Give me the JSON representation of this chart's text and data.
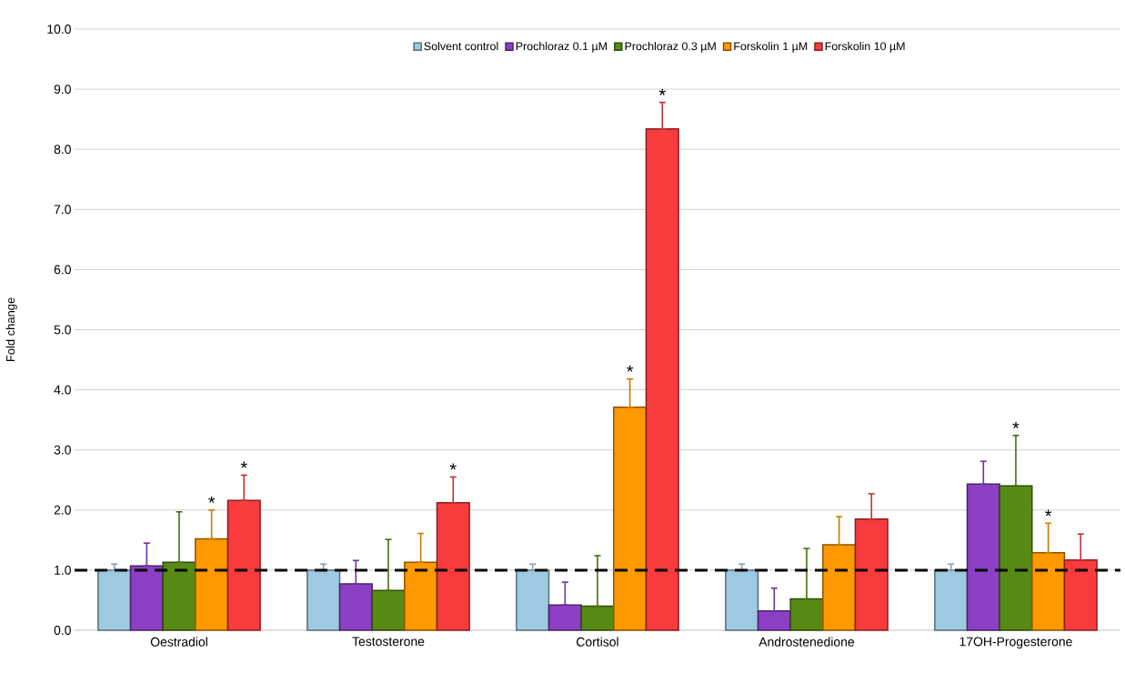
{
  "chart_data": {
    "type": "bar",
    "ylabel": "Fold change",
    "categories": [
      "Oestradiol",
      "Testosterone",
      "Cortisol",
      "Androstenedione",
      "17OH-Progesterone"
    ],
    "series": [
      {
        "name": "Solvent control",
        "color": "#9ecae1",
        "values": [
          1.0,
          1.0,
          1.0,
          1.0,
          1.0
        ],
        "errors": [
          [
            1.0,
            1.1
          ],
          [
            1.0,
            1.1
          ],
          [
            1.0,
            1.1
          ],
          [
            1.0,
            1.1
          ],
          [
            1.0,
            1.1
          ]
        ],
        "value_labels": [
          null,
          null,
          null,
          null,
          null
        ]
      },
      {
        "name": "Prochloraz 0.1 µM",
        "color": "#8b3fc4",
        "values": [
          1.07,
          0.77,
          0.42,
          0.32,
          2.43
        ],
        "errors": [
          [
            1.07,
            1.45
          ],
          [
            0.77,
            1.16
          ],
          [
            0.42,
            0.8
          ],
          [
            0.32,
            0.7
          ],
          [
            2.43,
            2.81
          ]
        ],
        "value_labels": [
          null,
          null,
          null,
          null,
          null
        ]
      },
      {
        "name": "Prochloraz 0.3 µM",
        "color": "#578a14",
        "values": [
          1.13,
          0.66,
          0.4,
          0.52,
          2.4
        ],
        "errors": [
          [
            1.13,
            1.97
          ],
          [
            0.66,
            1.51
          ],
          [
            0.4,
            1.24
          ],
          [
            0.52,
            1.36
          ],
          [
            2.4,
            3.24
          ]
        ],
        "value_labels": [
          null,
          null,
          null,
          null,
          "*"
        ]
      },
      {
        "name": "Forskolin 1 µM",
        "color": "#ff9900",
        "values": [
          1.52,
          1.13,
          3.71,
          1.42,
          1.29
        ],
        "errors": [
          [
            1.52,
            2.0
          ],
          [
            1.13,
            1.61
          ],
          [
            3.71,
            4.18
          ],
          [
            1.42,
            1.89
          ],
          [
            1.29,
            1.78
          ]
        ],
        "value_labels": [
          "*",
          null,
          "*",
          null,
          "*"
        ]
      },
      {
        "name": "Forskolin 10 µM",
        "color": "#f83b3d",
        "values": [
          2.16,
          2.12,
          8.34,
          1.85,
          1.17
        ],
        "errors": [
          [
            2.16,
            2.58
          ],
          [
            2.12,
            2.55
          ],
          [
            8.34,
            8.78
          ],
          [
            1.85,
            2.27
          ],
          [
            1.17,
            1.6
          ]
        ],
        "value_labels": [
          "*",
          "*",
          "*",
          null,
          null
        ]
      }
    ],
    "ylim": [
      0,
      10
    ],
    "yticks": [
      {
        "value": 0,
        "label": "0.0"
      },
      {
        "value": 1,
        "label": "1.0"
      },
      {
        "value": 2,
        "label": "2.0"
      },
      {
        "value": 3,
        "label": "3.0"
      },
      {
        "value": 4,
        "label": "4.0"
      },
      {
        "value": 5,
        "label": "5.0"
      },
      {
        "value": 6,
        "label": "6.0"
      },
      {
        "value": 7,
        "label": "7.0"
      },
      {
        "value": 8,
        "label": "8.0"
      },
      {
        "value": 9,
        "label": "9.0"
      },
      {
        "value": 10,
        "label": "10.0"
      }
    ],
    "grid": "y",
    "legend": "top",
    "ref_lines": [
      {
        "axis": "y",
        "value": 1,
        "color": "#000000",
        "line_style": "dashed"
      }
    ]
  }
}
